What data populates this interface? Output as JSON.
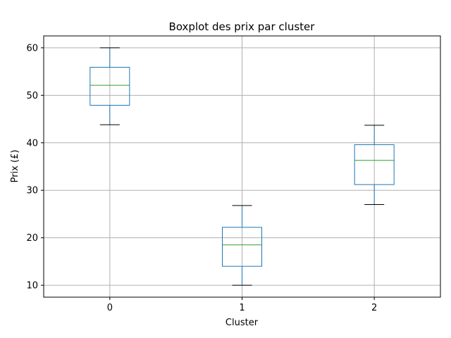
{
  "chart_data": {
    "type": "boxplot",
    "title": "Boxplot des prix par cluster",
    "xlabel": "Cluster",
    "ylabel": "Prix (£)",
    "categories": [
      "0",
      "1",
      "2"
    ],
    "ylim": [
      7.5,
      62.5
    ],
    "yticks": [
      10,
      20,
      30,
      40,
      50,
      60
    ],
    "grid": true,
    "boxes": [
      {
        "category": "0",
        "whisker_low": 43.8,
        "q1": 47.9,
        "median": 52.1,
        "q3": 55.9,
        "whisker_high": 60.0
      },
      {
        "category": "1",
        "whisker_low": 10.0,
        "q1": 14.0,
        "median": 18.5,
        "q3": 22.2,
        "whisker_high": 26.8
      },
      {
        "category": "2",
        "whisker_low": 27.0,
        "q1": 31.2,
        "median": 36.3,
        "q3": 39.6,
        "whisker_high": 43.7
      }
    ],
    "colors": {
      "box": "#1f77b4",
      "median": "#2ca02c",
      "cap": "#000000",
      "grid": "#b0b0b0"
    }
  }
}
